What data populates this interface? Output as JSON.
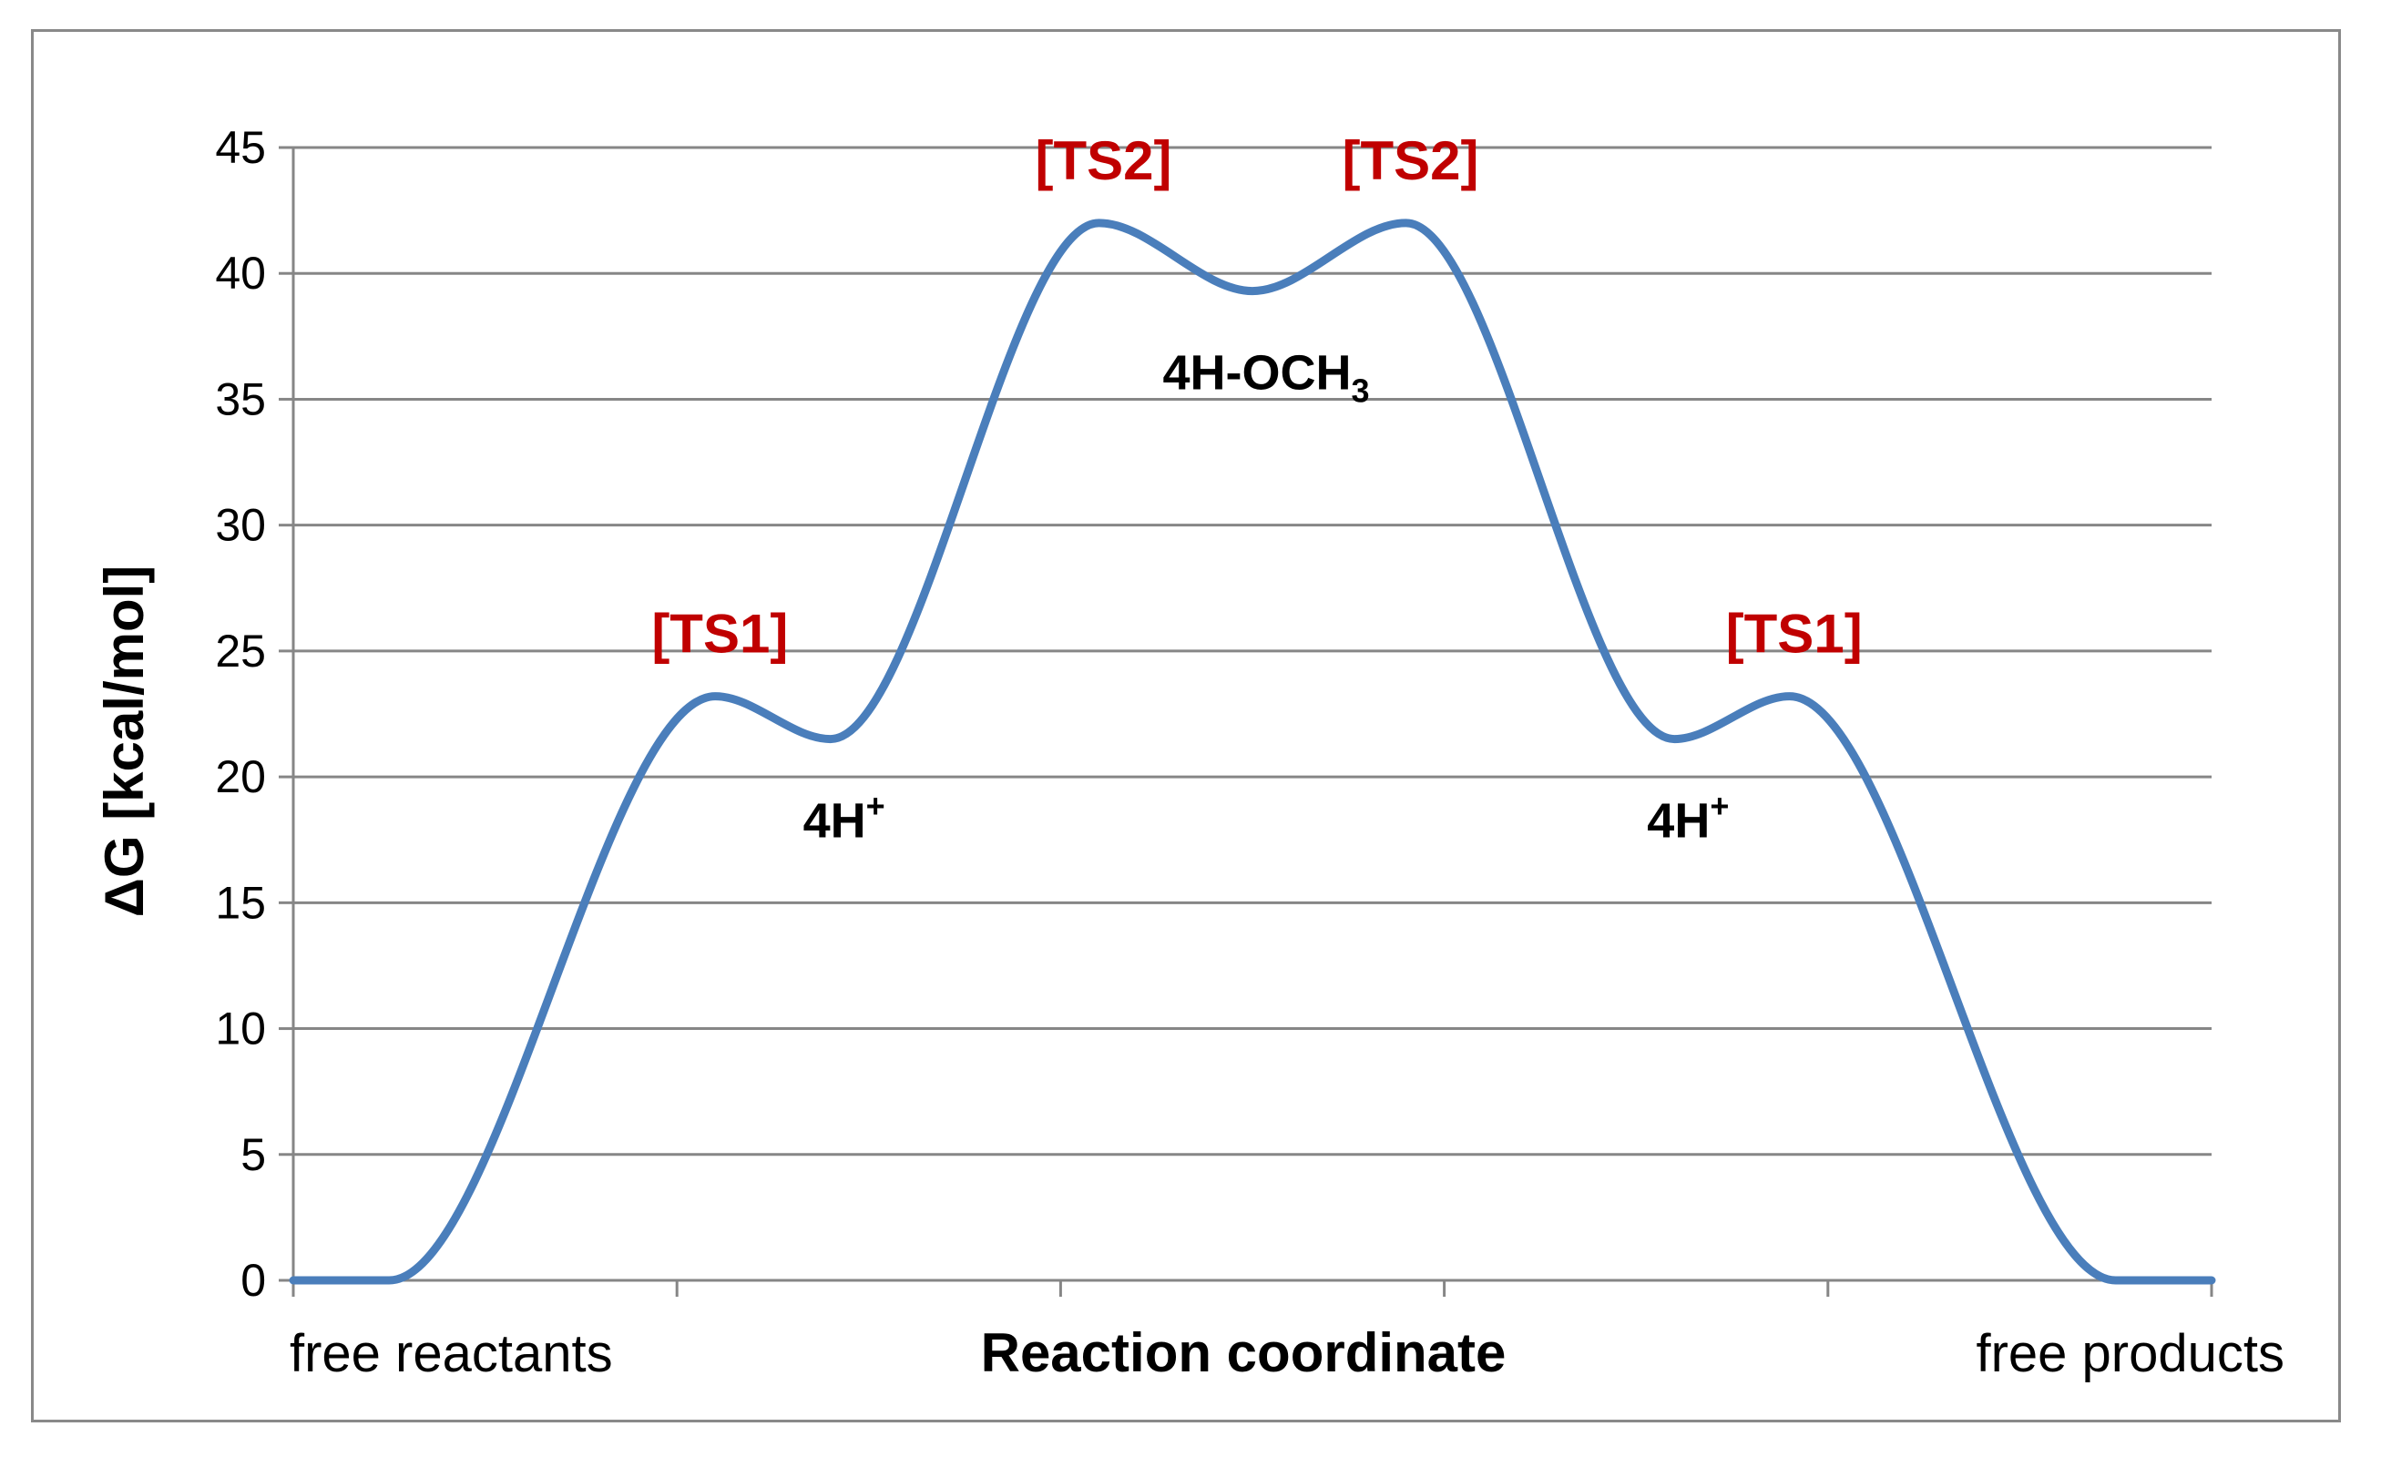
{
  "chart_data": {
    "type": "line",
    "title": "",
    "xlabel": "Reaction coordinate",
    "ylabel": "ΔG [kcal/mol]",
    "ylim": [
      0,
      45
    ],
    "yticks": [
      0,
      5,
      10,
      15,
      20,
      25,
      30,
      35,
      40,
      45
    ],
    "grid": true,
    "legend": "none",
    "x_endpoint_labels": [
      "free reactants",
      "free products"
    ],
    "x_positions": [
      0,
      1,
      2,
      3,
      4,
      5
    ],
    "series": [
      {
        "color": "#4a7ebb",
        "points": [
          {
            "x": 0.0,
            "y": 0.0
          },
          {
            "x": 0.25,
            "y": 0.0
          },
          {
            "x": 1.1,
            "y": 23.2
          },
          {
            "x": 1.4,
            "y": 21.5
          },
          {
            "x": 2.1,
            "y": 42.0
          },
          {
            "x": 2.5,
            "y": 39.3
          },
          {
            "x": 2.9,
            "y": 42.0
          },
          {
            "x": 3.6,
            "y": 21.5
          },
          {
            "x": 3.9,
            "y": 23.2
          },
          {
            "x": 4.75,
            "y": 0.0
          },
          {
            "x": 5.0,
            "y": 0.0
          }
        ]
      }
    ],
    "annotations": [
      {
        "type": "ts",
        "text": "[TS1]",
        "x": 1.1,
        "y": 23.2,
        "color": "#c00000"
      },
      {
        "type": "ts",
        "text": "[TS2]",
        "x": 2.1,
        "y": 42.0,
        "color": "#c00000"
      },
      {
        "type": "ts",
        "text": "[TS2]",
        "x": 2.9,
        "y": 42.0,
        "color": "#c00000"
      },
      {
        "type": "ts",
        "text": "[TS1]",
        "x": 3.9,
        "y": 23.2,
        "color": "#c00000"
      },
      {
        "type": "intermediate",
        "main": "4H",
        "sup": "+",
        "sub": "",
        "x": 1.4,
        "y": 21.5
      },
      {
        "type": "intermediate",
        "main": "4H-OCH",
        "sup": "",
        "sub": "3",
        "x": 2.5,
        "y": 39.3
      },
      {
        "type": "intermediate",
        "main": "4H",
        "sup": "+",
        "sub": "",
        "x": 3.6,
        "y": 21.5
      }
    ]
  }
}
